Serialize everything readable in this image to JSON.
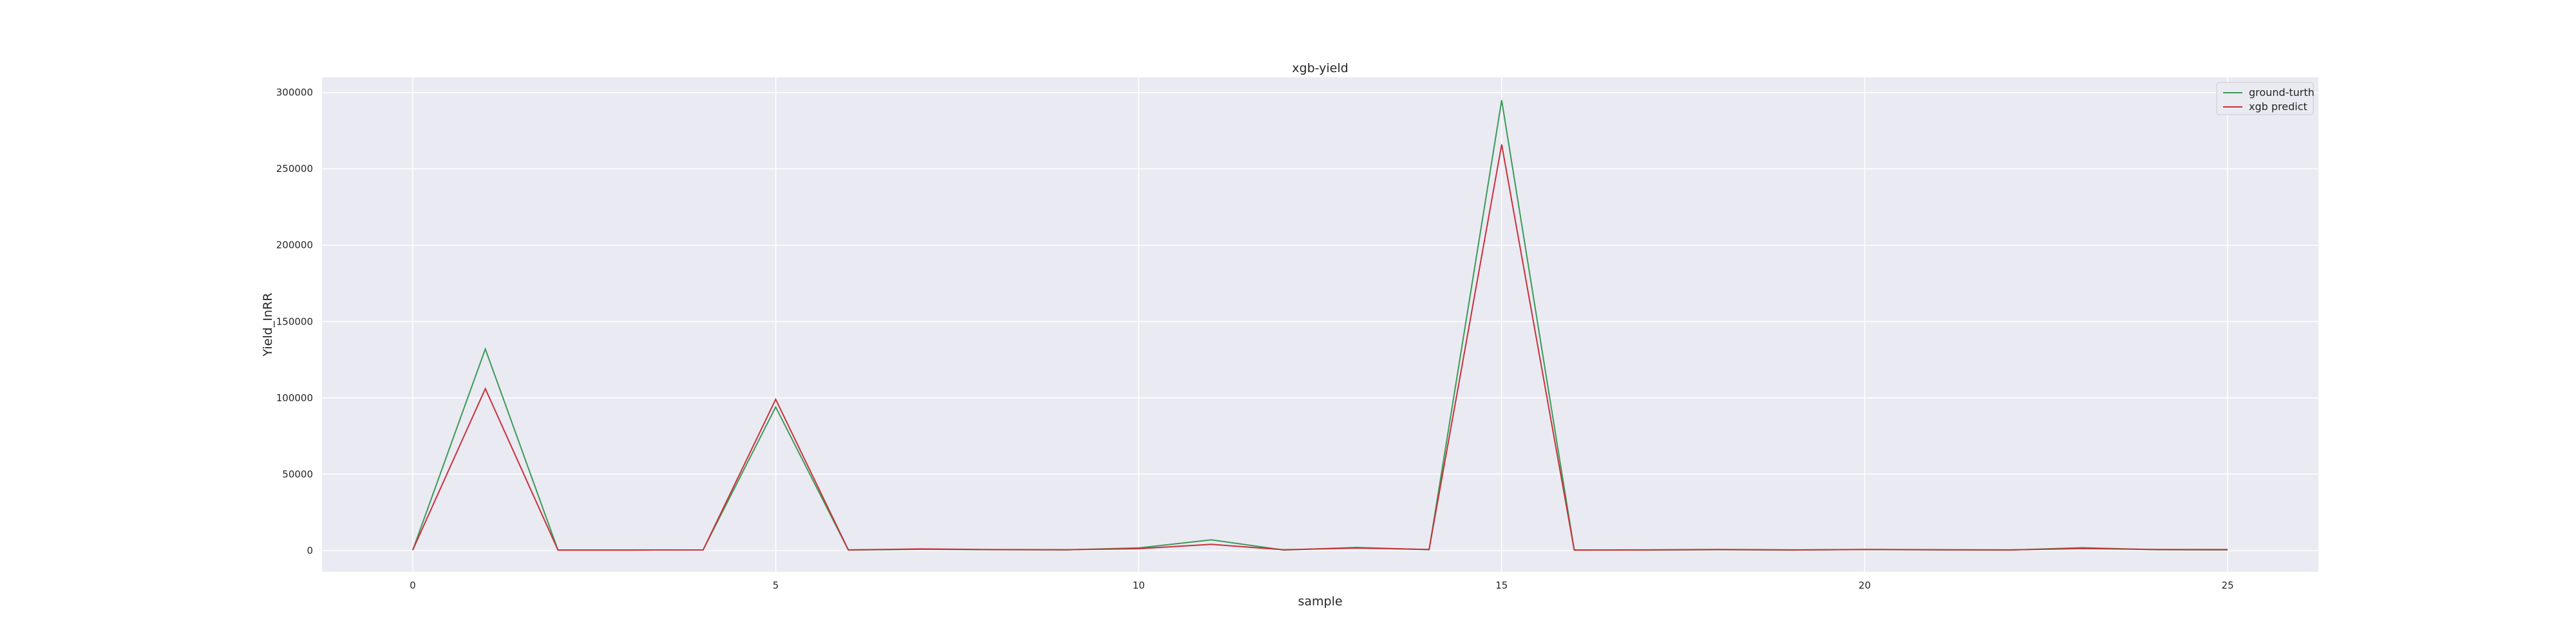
{
  "chart_data": {
    "type": "line",
    "title": "xgb-yield",
    "xlabel": "sample",
    "ylabel": "Yield_InRR",
    "x": [
      0,
      1,
      2,
      3,
      4,
      5,
      6,
      7,
      8,
      9,
      10,
      11,
      12,
      13,
      14,
      15,
      16,
      17,
      18,
      19,
      20,
      21,
      22,
      23,
      24,
      25
    ],
    "xlim": [
      -1.25,
      26.25
    ],
    "ylim": [
      -14000,
      310000
    ],
    "xticks": [
      0,
      5,
      10,
      15,
      20,
      25
    ],
    "yticks": [
      0,
      50000,
      100000,
      150000,
      200000,
      250000,
      300000
    ],
    "grid": true,
    "background": "#eaeaf2",
    "legend_position": "top-right",
    "series": [
      {
        "name": "ground-turth",
        "color": "#3a9a57",
        "values": [
          200,
          132000,
          300,
          300,
          400,
          94000,
          300,
          800,
          500,
          400,
          1700,
          7000,
          300,
          2000,
          500,
          295000,
          300,
          300,
          500,
          300,
          600,
          400,
          300,
          1800,
          500,
          400
        ]
      },
      {
        "name": "xgb predict",
        "color": "#c8313b",
        "values": [
          300,
          106000,
          300,
          300,
          400,
          99000,
          400,
          1000,
          600,
          500,
          1200,
          4000,
          500,
          1600,
          700,
          266000,
          300,
          400,
          700,
          400,
          700,
          500,
          400,
          1300,
          700,
          600
        ]
      }
    ]
  }
}
